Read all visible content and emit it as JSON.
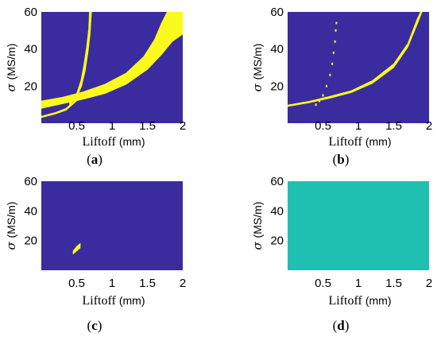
{
  "colors": {
    "background": "#3a2c9e",
    "region": "#fafa1e",
    "uniform": "#1fbfb2"
  },
  "chart_data": [
    {
      "type": "heatmap",
      "caption_letter": "a",
      "xlabel": "Liftoff",
      "xlabel_unit": "(mm)",
      "ylabel_symbol": "σ",
      "ylabel_unit": "(MS/m)",
      "xlim": [
        0,
        2
      ],
      "ylim": [
        0,
        60
      ],
      "xticks": [
        "0.5",
        "1",
        "1.5",
        "2"
      ],
      "yticks": [
        "20",
        "40",
        "60"
      ],
      "fill": "background",
      "regions": [
        {
          "fill": "region",
          "lower": [
            [
              0,
              8
            ],
            [
              0.3,
              10.5
            ],
            [
              0.6,
              13
            ],
            [
              0.9,
              16
            ],
            [
              1.2,
              21
            ],
            [
              1.5,
              29
            ],
            [
              1.7,
              37
            ],
            [
              1.85,
              44
            ],
            [
              2,
              48
            ]
          ],
          "upper": [
            [
              0,
              12
            ],
            [
              0.3,
              14
            ],
            [
              0.6,
              17
            ],
            [
              0.9,
              21
            ],
            [
              1.2,
              27
            ],
            [
              1.45,
              36
            ],
            [
              1.6,
              45
            ],
            [
              1.7,
              54
            ],
            [
              1.78,
              60
            ],
            [
              2,
              60
            ]
          ]
        },
        {
          "fill": "region",
          "lower": [
            [
              0.4,
              10
            ],
            [
              0.5,
              14
            ],
            [
              0.57,
              20
            ],
            [
              0.62,
              28
            ],
            [
              0.66,
              38
            ],
            [
              0.69,
              48
            ],
            [
              0.71,
              60
            ]
          ],
          "upper": [
            [
              0.4,
              11
            ],
            [
              0.5,
              16
            ],
            [
              0.56,
              23
            ],
            [
              0.6,
              31
            ],
            [
              0.64,
              41
            ],
            [
              0.67,
              51
            ],
            [
              0.68,
              60
            ]
          ]
        },
        {
          "fill": "region",
          "lower": [
            [
              0,
              3
            ],
            [
              0.2,
              5
            ],
            [
              0.35,
              7
            ],
            [
              0.5,
              12
            ],
            [
              0.6,
              14
            ]
          ],
          "upper": [
            [
              0,
              3.8
            ],
            [
              0.2,
              5.8
            ],
            [
              0.35,
              8
            ],
            [
              0.5,
              13
            ],
            [
              0.6,
              15
            ]
          ]
        }
      ]
    },
    {
      "type": "heatmap",
      "caption_letter": "b",
      "xlabel": "Liftoff",
      "xlabel_unit": "(mm)",
      "ylabel_symbol": "σ",
      "ylabel_unit": "(MS/m)",
      "xlim": [
        0,
        2
      ],
      "ylim": [
        0,
        60
      ],
      "xticks": [
        "0.5",
        "1",
        "1.5",
        "2"
      ],
      "yticks": [
        "20",
        "40",
        "60"
      ],
      "fill": "background",
      "regions": [
        {
          "fill": "region",
          "lower": [
            [
              0,
              9
            ],
            [
              0.3,
              11
            ],
            [
              0.6,
              13.5
            ],
            [
              0.9,
              16.5
            ],
            [
              1.2,
              21.5
            ],
            [
              1.5,
              30
            ],
            [
              1.7,
              41
            ],
            [
              1.85,
              55
            ],
            [
              1.9,
              60
            ]
          ],
          "upper": [
            [
              0,
              9.8
            ],
            [
              0.3,
              11.8
            ],
            [
              0.6,
              14.5
            ],
            [
              0.9,
              17.5
            ],
            [
              1.2,
              23
            ],
            [
              1.5,
              32
            ],
            [
              1.7,
              43
            ],
            [
              1.83,
              56
            ],
            [
              1.88,
              60
            ]
          ]
        }
      ],
      "points": [
        [
          0.4,
          10
        ],
        [
          0.45,
          12
        ],
        [
          0.5,
          15
        ],
        [
          0.55,
          20
        ],
        [
          0.6,
          26
        ],
        [
          0.63,
          32
        ],
        [
          0.65,
          38
        ],
        [
          0.67,
          44
        ],
        [
          0.68,
          50
        ],
        [
          0.69,
          54
        ]
      ]
    },
    {
      "type": "heatmap",
      "caption_letter": "c",
      "xlabel": "Liftoff",
      "xlabel_unit": "(mm)",
      "ylabel_symbol": "σ",
      "ylabel_unit": "(MS/m)",
      "xlim": [
        0,
        2
      ],
      "ylim": [
        0,
        60
      ],
      "xticks": [
        "0.5",
        "1",
        "1.5",
        "2"
      ],
      "yticks": [
        "20",
        "40",
        "60"
      ],
      "fill": "background",
      "regions": [
        {
          "fill": "region",
          "lower": [
            [
              0.45,
              11
            ],
            [
              0.5,
              13
            ],
            [
              0.55,
              15
            ]
          ],
          "upper": [
            [
              0.45,
              13
            ],
            [
              0.5,
              16
            ],
            [
              0.55,
              18
            ]
          ]
        }
      ]
    },
    {
      "type": "heatmap",
      "caption_letter": "d",
      "xlabel": "Liftoff",
      "xlabel_unit": "(mm)",
      "ylabel_symbol": "σ",
      "ylabel_unit": "(MS/m)",
      "xlim": [
        0,
        2
      ],
      "ylim": [
        0,
        60
      ],
      "xticks": [
        "0.5",
        "1",
        "1.5",
        "2"
      ],
      "yticks": [
        "20",
        "40",
        "60"
      ],
      "fill": "uniform",
      "regions": []
    }
  ]
}
